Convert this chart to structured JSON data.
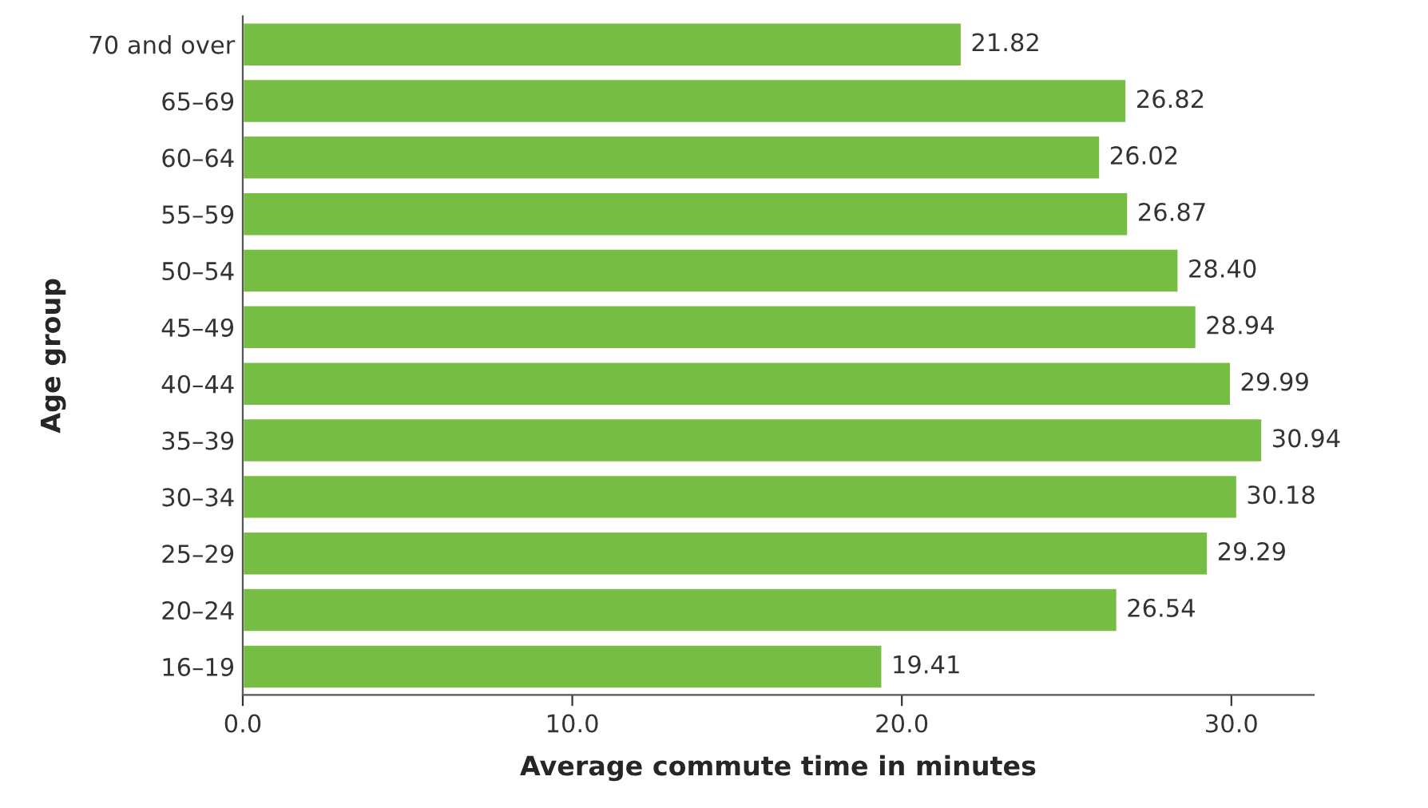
{
  "chart_data": {
    "type": "bar",
    "orientation": "horizontal",
    "xlabel": "Average commute time in minutes",
    "ylabel": "Age group",
    "categories": [
      "70 and over",
      "65–69",
      "60–64",
      "55–59",
      "50–54",
      "45–49",
      "40–44",
      "35–39",
      "30–34",
      "25–29",
      "20–24",
      "16–19"
    ],
    "values": [
      21.82,
      26.82,
      26.02,
      26.87,
      28.4,
      28.94,
      29.99,
      30.94,
      30.18,
      29.29,
      26.54,
      19.41
    ],
    "value_labels": [
      "21.82",
      "26.82",
      "26.02",
      "26.87",
      "28.40",
      "28.94",
      "29.99",
      "30.94",
      "30.18",
      "29.29",
      "26.54",
      "19.41"
    ],
    "color": "#76bd43",
    "xlim": [
      0,
      32.5
    ],
    "xticks": [
      {
        "value": 0,
        "label": "0.0"
      },
      {
        "value": 10,
        "label": "10.0"
      },
      {
        "value": 20,
        "label": "20.0"
      },
      {
        "value": 30,
        "label": "30.0"
      }
    ],
    "grid": false,
    "legend": false
  }
}
